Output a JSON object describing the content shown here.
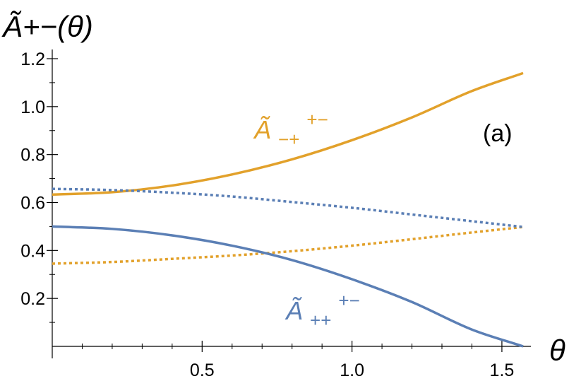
{
  "chart_data": {
    "type": "line",
    "ylabel": "Ã+−(θ)",
    "xlabel": "θ",
    "panel_label": "(a)",
    "xlim": [
      0,
      1.5708
    ],
    "ylim": [
      0,
      1.2
    ],
    "x_ticks": [
      0.5,
      1.0,
      1.5
    ],
    "x_tick_labels": [
      "0.5",
      "1.0",
      "1.5"
    ],
    "y_ticks": [
      0.2,
      0.4,
      0.6,
      0.8,
      1.0,
      1.2
    ],
    "y_tick_labels": [
      "0.2",
      "0.4",
      "0.6",
      "0.8",
      "1.0",
      "1.2"
    ],
    "grid": false,
    "colors": {
      "orange": "#E2A12B",
      "blue": "#5B7FB5"
    },
    "series": [
      {
        "label_base": "Ã",
        "label_sub": "−+",
        "label_sup": "+−",
        "color": "#E2A12B",
        "style": "solid",
        "x": [
          0,
          0.2,
          0.4,
          0.6,
          0.8,
          1.0,
          1.2,
          1.4,
          1.5708
        ],
        "values": [
          0.633,
          0.643,
          0.671,
          0.717,
          0.78,
          0.86,
          0.955,
          1.065,
          1.14
        ]
      },
      {
        "color": "#E2A12B",
        "style": "dotted",
        "x": [
          0,
          0.2,
          0.4,
          0.6,
          0.8,
          1.0,
          1.2,
          1.4,
          1.5708
        ],
        "values": [
          0.345,
          0.352,
          0.365,
          0.379,
          0.397,
          0.42,
          0.447,
          0.475,
          0.498
        ]
      },
      {
        "color": "#5B7FB5",
        "style": "dotted",
        "x": [
          0,
          0.2,
          0.4,
          0.6,
          0.8,
          1.0,
          1.2,
          1.4,
          1.5708
        ],
        "values": [
          0.657,
          0.652,
          0.641,
          0.625,
          0.602,
          0.578,
          0.55,
          0.522,
          0.498
        ]
      },
      {
        "label_base": "Ã",
        "label_sub": "++",
        "label_sup": "+−",
        "color": "#5B7FB5",
        "style": "solid",
        "x": [
          0,
          0.2,
          0.4,
          0.6,
          0.8,
          1.0,
          1.2,
          1.4,
          1.5708
        ],
        "values": [
          0.5,
          0.49,
          0.463,
          0.42,
          0.36,
          0.28,
          0.185,
          0.07,
          0.0
        ]
      }
    ]
  }
}
